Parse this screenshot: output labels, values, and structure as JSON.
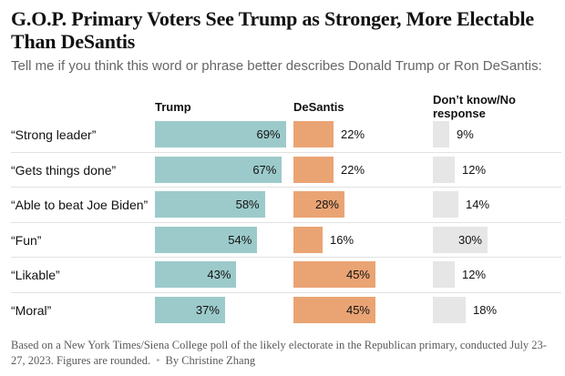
{
  "header": {
    "title": "G.O.P. Primary Voters See Trump as Stronger, More Electable Than DeSantis",
    "subtitle": "Tell me if you think this word or phrase better describes Donald Trump or Ron DeSantis:"
  },
  "footer": {
    "note": "Based on a New York Times/Siena College poll of the likely electorate in the Republican primary, conducted July 23-27, 2023. Figures are rounded.",
    "byline": "By Christine Zhang"
  },
  "colors": {
    "trump": "#9ccaca",
    "desantis": "#eaa474",
    "dont_know": "#e6e6e6"
  },
  "chart_data": {
    "type": "bar",
    "orientation": "horizontal",
    "categories": [
      "“Strong leader”",
      "“Gets things done”",
      "“Able to beat Joe Biden”",
      "“Fun”",
      "“Likable”",
      "“Moral”"
    ],
    "series": [
      {
        "name": "Trump",
        "values": [
          69,
          67,
          58,
          54,
          43,
          37
        ],
        "labels": [
          "69%",
          "67%",
          "58%",
          "54%",
          "43%",
          "37%"
        ]
      },
      {
        "name": "DeSantis",
        "values": [
          22,
          22,
          28,
          16,
          45,
          45
        ],
        "labels": [
          "22%",
          "22%",
          "28%",
          "16%",
          "45%",
          "45%"
        ]
      },
      {
        "name": "Don’t know/No response",
        "values": [
          9,
          12,
          14,
          30,
          12,
          18
        ],
        "labels": [
          "9%",
          "12%",
          "14%",
          "30%",
          "12%",
          "18%"
        ]
      }
    ],
    "unit": "%"
  }
}
